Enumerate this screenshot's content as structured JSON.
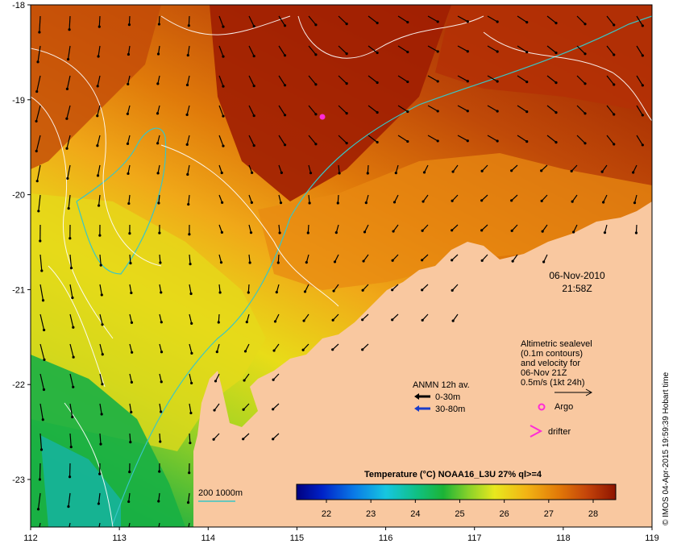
{
  "map": {
    "x_ticks": [
      "112",
      "113",
      "114",
      "115",
      "116",
      "117",
      "118",
      "119"
    ],
    "y_ticks": [
      "-18",
      "-19",
      "-20",
      "-21",
      "-22",
      "-23"
    ]
  },
  "date_label": {
    "date": "06-Nov-2010",
    "time": "21:58Z"
  },
  "altimetry_legend": {
    "lines": [
      "Altimetric sealevel",
      "(0.1m contours)",
      "and velocity for",
      "06-Nov 21Z",
      "0.5m/s (1kt 24h)"
    ]
  },
  "anmn_legend": {
    "title": "ANMN 12h av.",
    "items": [
      {
        "label": "0-30m",
        "color": "#000000"
      },
      {
        "label": "30-80m",
        "color": "#1a3cc8"
      }
    ]
  },
  "markers": {
    "argo_label": "Argo",
    "drifter_label": "drifter",
    "marker_color": "#ff2bd6"
  },
  "bathymetry_legend": {
    "label": "200  1000m",
    "color": "#39c6c6"
  },
  "colorbar": {
    "title": "Temperature (°C) NOAA16_L3U 27% ql>=4",
    "ticks": [
      "22",
      "23",
      "24",
      "25",
      "26",
      "27",
      "28"
    ]
  },
  "credit": "© IMOS 04-Apr-2015 19:59:39 Hobart time",
  "colors": {
    "land": "#f9c8a0",
    "warm": "#9e1c00",
    "cool": "#22b84a"
  }
}
